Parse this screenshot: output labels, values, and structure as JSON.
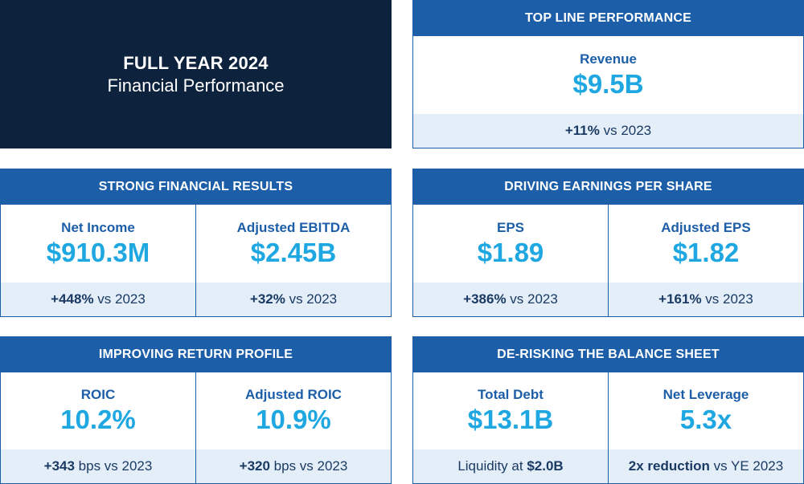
{
  "hero": {
    "title": "FULL YEAR 2024",
    "subtitle": "Financial Performance"
  },
  "colors": {
    "navy": "#0d223d",
    "header_blue": "#1c5ea8",
    "value_blue": "#1fa7e1",
    "footer_bg": "#e3eef8"
  },
  "top_line": {
    "title": "TOP LINE PERFORMANCE",
    "metrics": [
      {
        "label": "Revenue",
        "value": "$9.5B",
        "foot_bold": "+11%",
        "foot_text": " vs 2023"
      }
    ]
  },
  "financial_results": {
    "title": "STRONG FINANCIAL RESULTS",
    "metrics": [
      {
        "label": "Net Income",
        "value": "$910.3M",
        "foot_bold": "+448%",
        "foot_text": " vs 2023"
      },
      {
        "label": "Adjusted EBITDA",
        "value": "$2.45B",
        "foot_bold": "+32%",
        "foot_text": " vs 2023"
      }
    ]
  },
  "earnings": {
    "title": "DRIVING EARNINGS PER SHARE",
    "metrics": [
      {
        "label": "EPS",
        "value": "$1.89",
        "foot_bold": "+386%",
        "foot_text": " vs 2023"
      },
      {
        "label": "Adjusted EPS",
        "value": "$1.82",
        "foot_bold": "+161%",
        "foot_text": " vs 2023"
      }
    ]
  },
  "returns": {
    "title": "IMPROVING RETURN PROFILE",
    "metrics": [
      {
        "label": "ROIC",
        "value": "10.2%",
        "foot_bold": "+343",
        "foot_text": " bps vs 2023"
      },
      {
        "label": "Adjusted ROIC",
        "value": "10.9%",
        "foot_bold": "+320",
        "foot_text": " bps vs 2023"
      }
    ]
  },
  "balance_sheet": {
    "title": "DE-RISKING THE BALANCE SHEET",
    "metrics": [
      {
        "label": "Total Debt",
        "value": "$13.1B",
        "foot_text_pre": "Liquidity at ",
        "foot_bold": "$2.0B"
      },
      {
        "label": "Net Leverage",
        "value": "5.3x",
        "foot_bold": "2x reduction",
        "foot_text": " vs YE 2023"
      }
    ]
  }
}
